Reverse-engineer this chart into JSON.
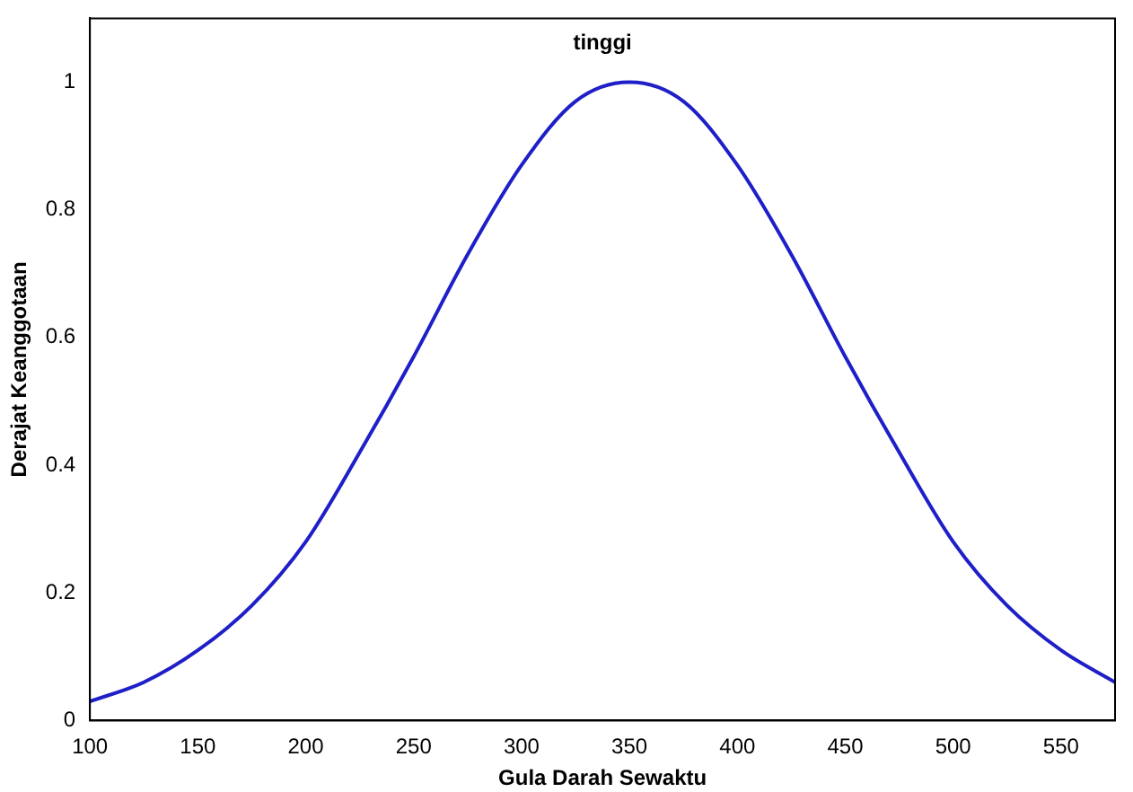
{
  "chart_data": {
    "type": "line",
    "xlabel": "Gula Darah Sewaktu",
    "ylabel": "Derajat Keanggotaan",
    "title": "tinggi",
    "x": [
      100,
      125,
      150,
      175,
      200,
      225,
      250,
      275,
      300,
      325,
      350,
      375,
      400,
      425,
      450,
      475,
      500,
      525,
      550,
      575
    ],
    "series": [
      {
        "color": "#1f1fc8",
        "values": [
          0.03,
          0.06,
          0.11,
          0.18,
          0.28,
          0.42,
          0.57,
          0.73,
          0.87,
          0.97,
          1,
          0.97,
          0.87,
          0.73,
          0.57,
          0.42,
          0.28,
          0.18,
          0.11,
          0.06
        ]
      }
    ],
    "xlim": [
      100,
      575
    ],
    "xticks": [
      100,
      150,
      200,
      250,
      300,
      350,
      400,
      450,
      500,
      550
    ],
    "ylim": [
      0,
      1.1
    ],
    "yticks": [
      0,
      0.2,
      0.4,
      0.6,
      0.8,
      1
    ],
    "grid": false,
    "legend": false,
    "marker": "none",
    "line_style": "solid"
  }
}
